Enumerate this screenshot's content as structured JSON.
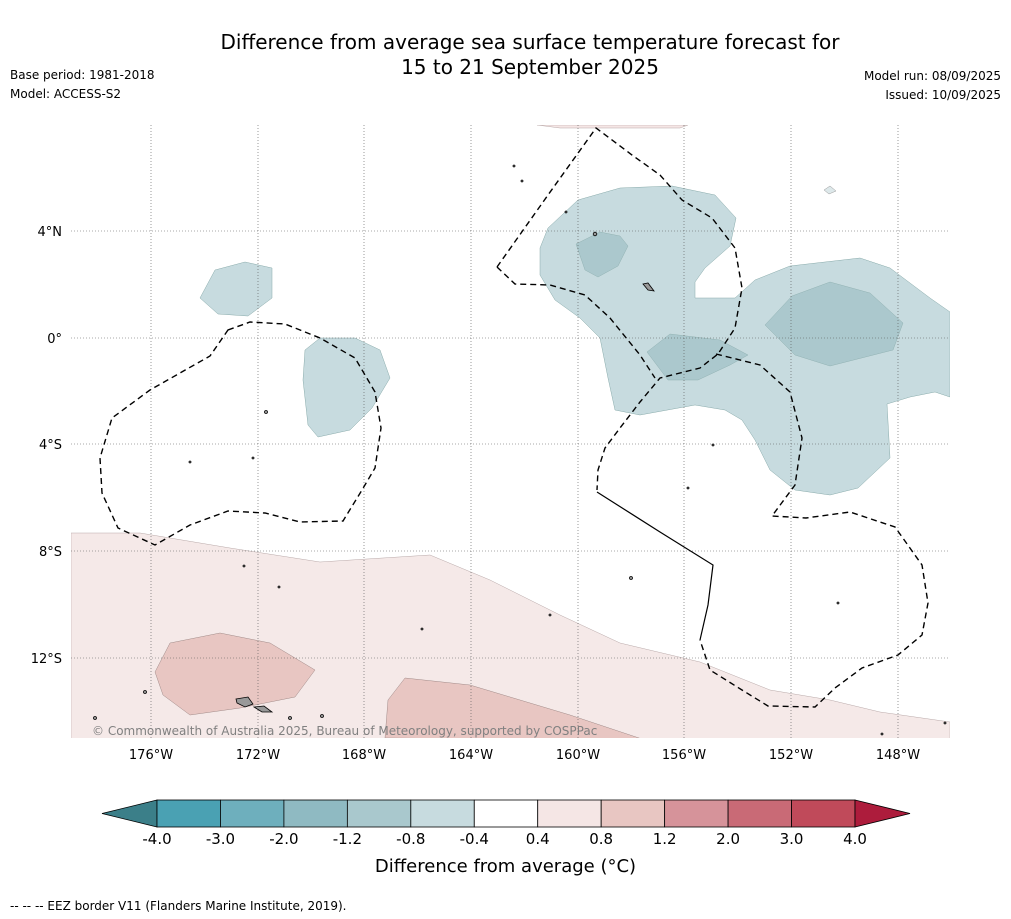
{
  "title": {
    "line1": "Difference from average sea surface temperature forecast for",
    "line2": "15 to 21 September 2025"
  },
  "meta": {
    "base_period": "Base period: 1981-2018",
    "model": "Model: ACCESS-S2",
    "model_run": "Model run: 08/09/2025",
    "issued": "Issued: 10/09/2025"
  },
  "map": {
    "lat_labels": [
      "4°N",
      "0°",
      "4°S",
      "8°S",
      "12°S"
    ],
    "lon_labels": [
      "176°W",
      "172°W",
      "168°W",
      "164°W",
      "160°W",
      "156°W",
      "152°W",
      "148°W"
    ],
    "copyright": "© Commonwealth of Australia 2025, Bureau of Meteorology, supported by COSPPac"
  },
  "colorbar": {
    "ticks": [
      "-4.0",
      "-3.0",
      "-2.0",
      "-1.2",
      "-0.8",
      "-0.4",
      "0.4",
      "0.8",
      "1.2",
      "2.0",
      "3.0",
      "4.0"
    ],
    "colors": [
      "#4aa1b3",
      "#6eafbd",
      "#8fbac2",
      "#a9c8cd",
      "#c7dbdf",
      "#ffffff",
      "#f5e6e5",
      "#e8c6c2",
      "#d6939a",
      "#c96a76",
      "#c04a5a"
    ],
    "under_color": "#3b7f89",
    "over_color": "#ad1c3c",
    "label": "Difference from average (°C)"
  },
  "footnote": "--  --  -- EEZ border V11 (Flanders Marine Institute, 2019)."
}
